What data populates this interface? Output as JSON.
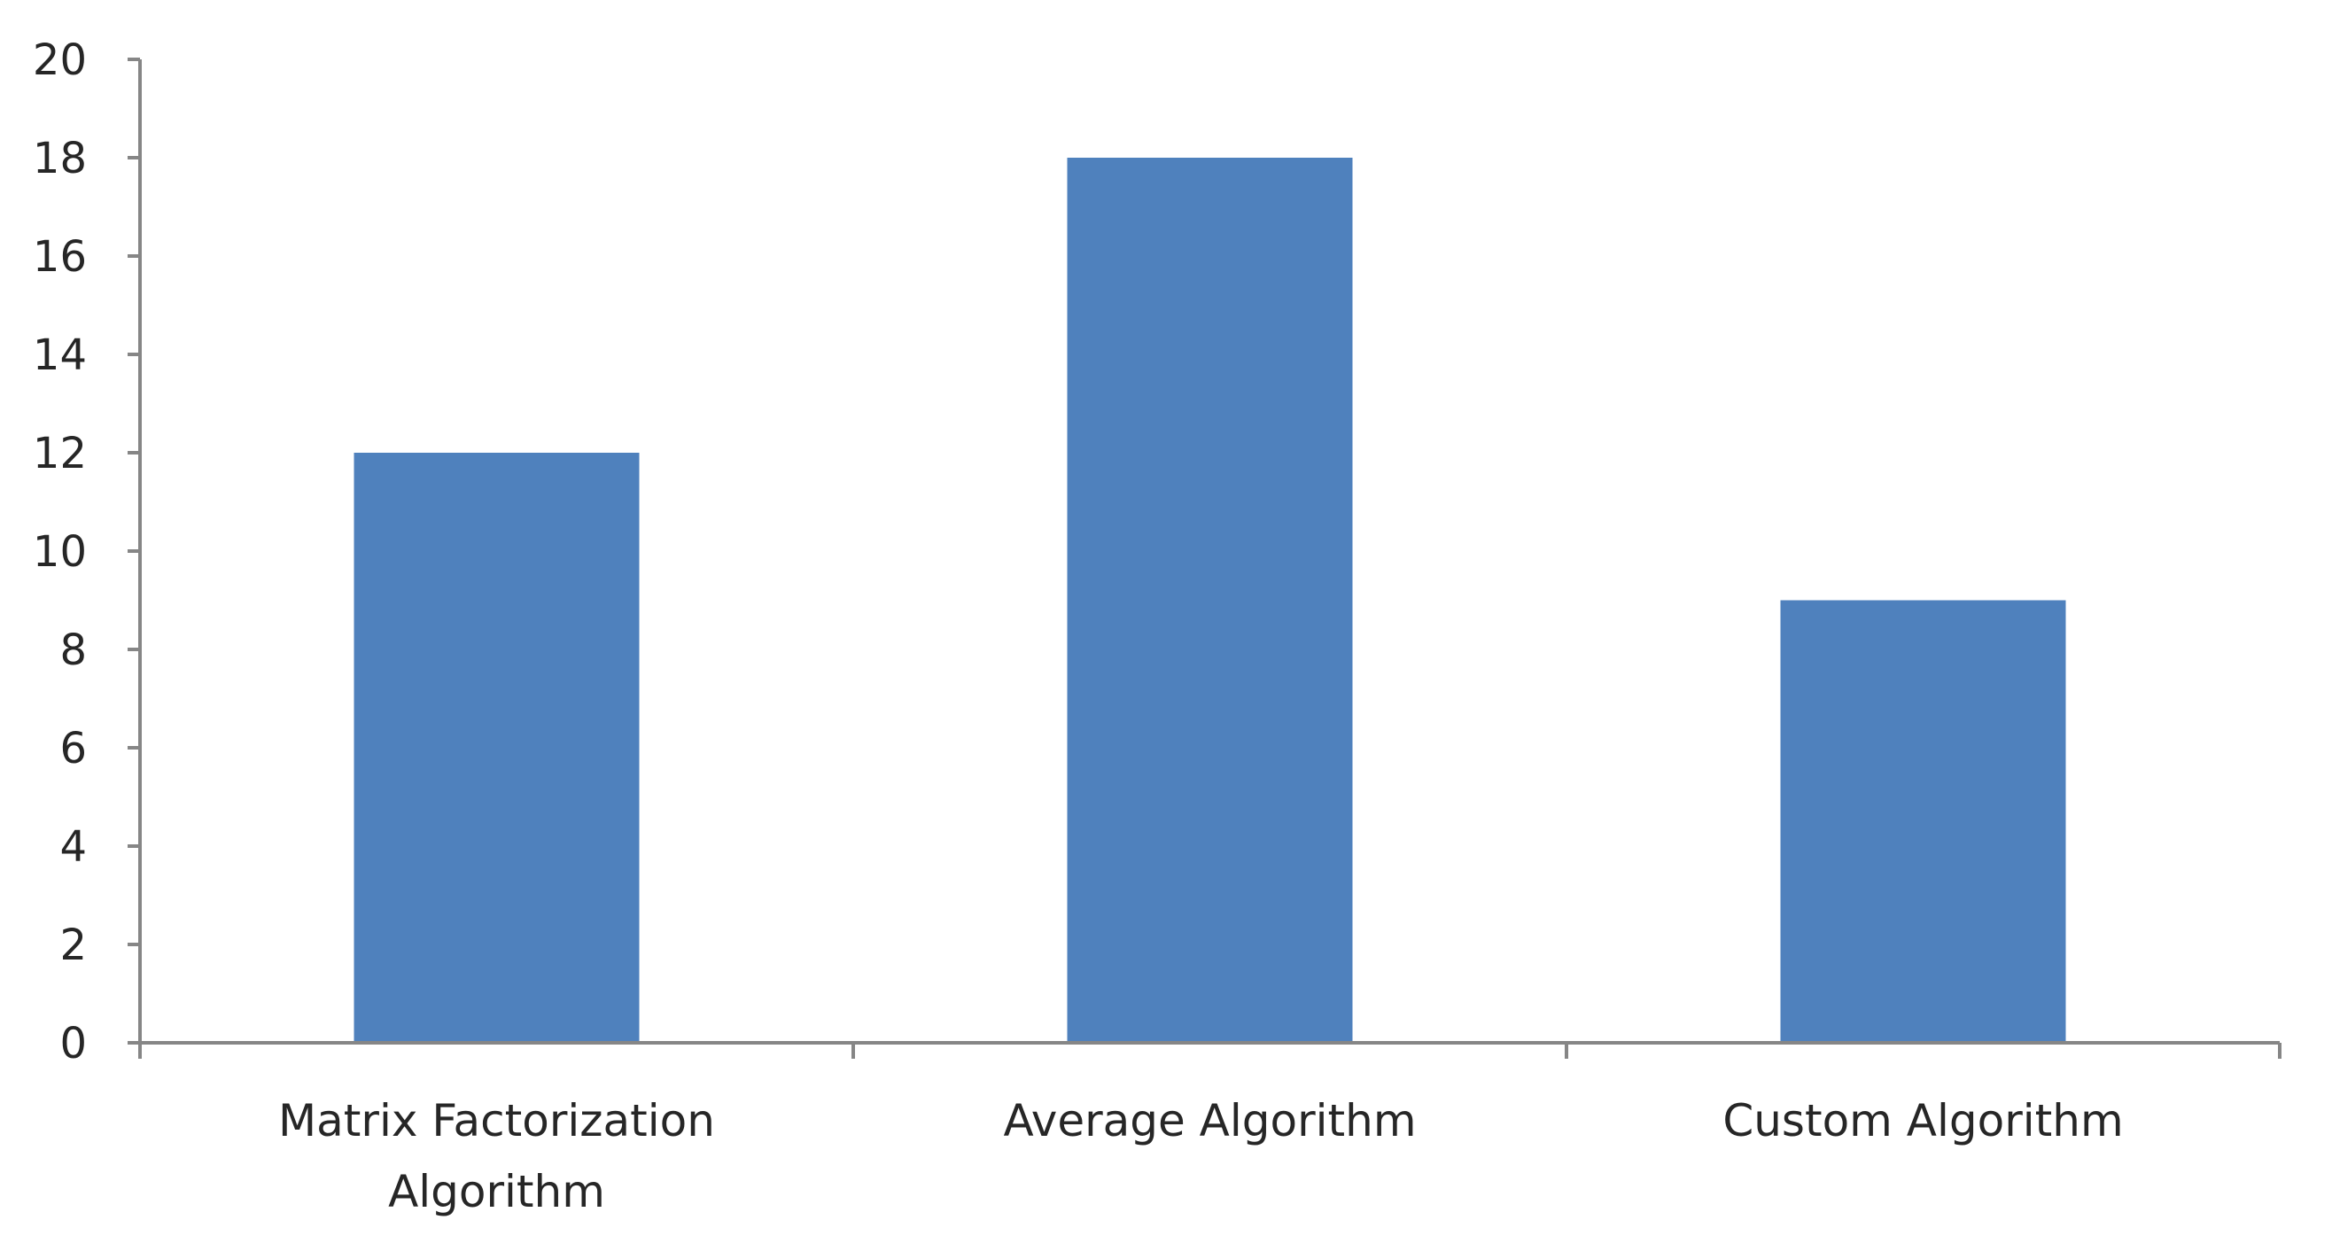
{
  "chart_data": {
    "type": "bar",
    "title": "",
    "xlabel": "",
    "ylabel": "",
    "categories": [
      "Matrix Factorization Algorithm",
      "Average Algorithm",
      "Custom Algorithm"
    ],
    "category_label_lines": [
      [
        "Matrix Factorization",
        "Algorithm"
      ],
      [
        "Average Algorithm"
      ],
      [
        "Custom Algorithm"
      ]
    ],
    "values": [
      12,
      18,
      9
    ],
    "ylim": [
      0,
      20
    ],
    "yticks": [
      0,
      2,
      4,
      6,
      8,
      10,
      12,
      14,
      16,
      18,
      20
    ],
    "grid": false,
    "legend": "none",
    "bar_color": "#4f81bd",
    "axis_color": "#868686",
    "text_color": "#262626"
  }
}
